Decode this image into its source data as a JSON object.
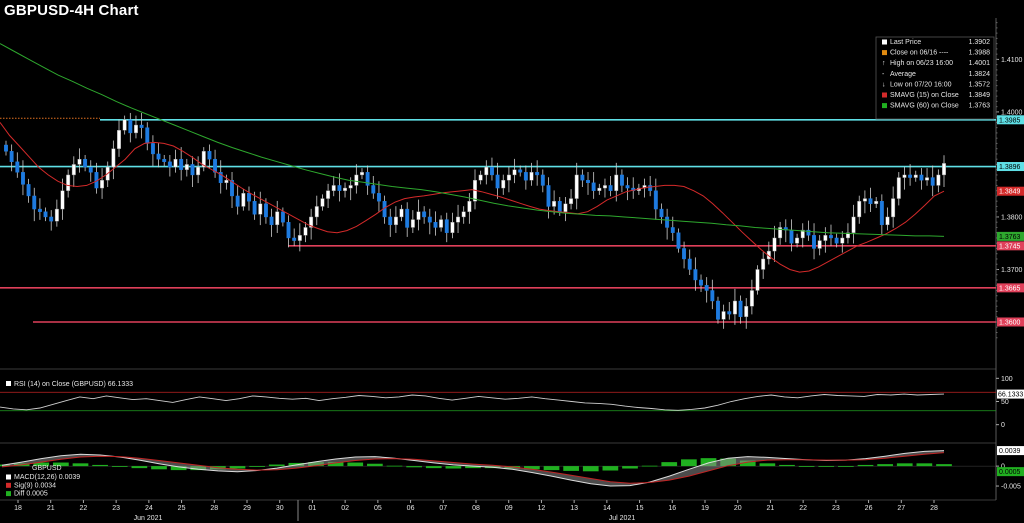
{
  "title": "GBPUSD-4H Chart",
  "colors": {
    "bg": "#000000",
    "up": "#ffffff",
    "down": "#1e7be0",
    "sma15": "#d42a2a",
    "sma60": "#2ea82e",
    "cyan": "#5fe0e6",
    "support": "#e0405a",
    "rsi": "#cfcfcf",
    "macd": "#dcdcdc",
    "signal": "#c02424",
    "diff": "#20b020"
  },
  "chart_data": [
    {
      "type": "candlestick",
      "pane": "price",
      "yrange": [
        1.356,
        1.4175
      ],
      "yticks": [
        "1.4100",
        "1.4000",
        "1.3900",
        "1.3800",
        "1.3700",
        "1.3600"
      ],
      "x_ticks": [
        "18",
        "21",
        "22",
        "23",
        "24",
        "25",
        "28",
        "29",
        "30",
        "01",
        "02",
        "05",
        "06",
        "07",
        "08",
        "09",
        "12",
        "13",
        "14",
        "15",
        "16",
        "19",
        "20",
        "21",
        "22",
        "23",
        "26",
        "27",
        "28"
      ],
      "month_labels": [
        "Jun 2021",
        "Jul 2021"
      ],
      "close": [
        1.3925,
        1.3905,
        1.3885,
        1.3862,
        1.384,
        1.3815,
        1.381,
        1.38,
        1.3792,
        1.3815,
        1.385,
        1.388,
        1.39,
        1.391,
        1.3895,
        1.3885,
        1.3855,
        1.387,
        1.3895,
        1.393,
        1.3965,
        1.3985,
        1.396,
        1.3975,
        1.397,
        1.394,
        1.392,
        1.391,
        1.3905,
        1.3895,
        1.391,
        1.389,
        1.39,
        1.388,
        1.3895,
        1.3925,
        1.391,
        1.3885,
        1.3865,
        1.387,
        1.384,
        1.382,
        1.3845,
        1.383,
        1.3805,
        1.3825,
        1.38,
        1.3785,
        1.381,
        1.379,
        1.376,
        1.3755,
        1.3765,
        1.378,
        1.38,
        1.382,
        1.3835,
        1.385,
        1.386,
        1.385,
        1.3855,
        1.386,
        1.388,
        1.3885,
        1.386,
        1.3845,
        1.383,
        1.38,
        1.3785,
        1.38,
        1.3815,
        1.378,
        1.3795,
        1.381,
        1.38,
        1.379,
        1.378,
        1.3795,
        1.377,
        1.379,
        1.38,
        1.381,
        1.383,
        1.387,
        1.388,
        1.3895,
        1.388,
        1.3855,
        1.387,
        1.388,
        1.389,
        1.3885,
        1.387,
        1.3885,
        1.388,
        1.386,
        1.382,
        1.383,
        1.381,
        1.3825,
        1.3835,
        1.388,
        1.387,
        1.3865,
        1.385,
        1.3855,
        1.386,
        1.385,
        1.388,
        1.386,
        1.3855,
        1.385,
        1.3855,
        1.386,
        1.385,
        1.3815,
        1.38,
        1.378,
        1.377,
        1.374,
        1.372,
        1.37,
        1.368,
        1.367,
        1.366,
        1.364,
        1.3605,
        1.362,
        1.3615,
        1.364,
        1.361,
        1.363,
        1.366,
        1.37,
        1.372,
        1.3735,
        1.376,
        1.378,
        1.3775,
        1.375,
        1.376,
        1.3775,
        1.3765,
        1.374,
        1.3755,
        1.3765,
        1.376,
        1.375,
        1.376,
        1.377,
        1.38,
        1.383,
        1.3835,
        1.3825,
        1.383,
        1.3785,
        1.38,
        1.3835,
        1.3875,
        1.388,
        1.3875,
        1.388,
        1.387,
        1.3875,
        1.386,
        1.388,
        1.3902
      ]
    },
    {
      "type": "line",
      "pane": "price",
      "series": [
        {
          "name": "SMAVG (15) on Close",
          "values": [
            1.398,
            1.3955,
            1.3935,
            1.3915,
            1.3895,
            1.388,
            1.3868,
            1.386,
            1.3858,
            1.386,
            1.3868,
            1.388,
            1.3895,
            1.391,
            1.393,
            1.394,
            1.3942,
            1.394,
            1.3935,
            1.3925,
            1.3913,
            1.39,
            1.389,
            1.388,
            1.3868,
            1.3856,
            1.3845,
            1.3835,
            1.3825,
            1.3815,
            1.3805,
            1.3795,
            1.3785,
            1.3778,
            1.3772,
            1.377,
            1.3774,
            1.3782,
            1.3793,
            1.3805,
            1.3818,
            1.3828,
            1.3835,
            1.3838,
            1.384,
            1.3843,
            1.3846,
            1.3848,
            1.385,
            1.3852,
            1.3848,
            1.3843,
            1.3838,
            1.3832,
            1.3826,
            1.382,
            1.3815,
            1.3812,
            1.381,
            1.3808,
            1.3806,
            1.381,
            1.382,
            1.3832,
            1.384,
            1.3848,
            1.3852,
            1.3856,
            1.3858,
            1.386,
            1.386,
            1.3858,
            1.385,
            1.384,
            1.3825,
            1.3808,
            1.379,
            1.3772,
            1.3755,
            1.3738,
            1.3723,
            1.371,
            1.37,
            1.3695,
            1.3697,
            1.3705,
            1.3715,
            1.3725,
            1.3735,
            1.3745,
            1.3752,
            1.376,
            1.3768,
            1.3778,
            1.379,
            1.3805,
            1.3822,
            1.384,
            1.3849
          ]
        },
        {
          "name": "SMAVG (60) on Close",
          "values": [
            1.413,
            1.4115,
            1.41,
            1.4085,
            1.407,
            1.4058,
            1.4045,
            1.4033,
            1.402,
            1.4008,
            1.3997,
            1.3986,
            1.3975,
            1.3964,
            1.3953,
            1.3942,
            1.3932,
            1.3923,
            1.3914,
            1.3906,
            1.3898,
            1.389,
            1.3883,
            1.3876,
            1.387,
            1.3866,
            1.3862,
            1.3858,
            1.3855,
            1.3852,
            1.3848,
            1.3843,
            1.3838,
            1.3832,
            1.3826,
            1.3821,
            1.3817,
            1.3813,
            1.381,
            1.3807,
            1.3805,
            1.3803,
            1.3802,
            1.38,
            1.3798,
            1.3796,
            1.3794,
            1.3792,
            1.379,
            1.3788,
            1.3785,
            1.3783,
            1.378,
            1.3778,
            1.3776,
            1.3774,
            1.3772,
            1.377,
            1.3769,
            1.3768,
            1.3767,
            1.3766,
            1.3765,
            1.3764,
            1.3764,
            1.3763
          ]
        }
      ]
    },
    {
      "type": "line",
      "pane": "rsi",
      "yrange": [
        -5,
        105
      ],
      "yticks": [
        "100",
        "50",
        "0"
      ],
      "series": [
        {
          "name": "RSI (14) on Close (GBPUSD)",
          "values": [
            38,
            34,
            32,
            36,
            44,
            52,
            60,
            56,
            62,
            58,
            54,
            56,
            52,
            48,
            54,
            60,
            56,
            52,
            56,
            62,
            60,
            57,
            55,
            57,
            52,
            56,
            59,
            63,
            61,
            58,
            60,
            64,
            62,
            57,
            53,
            57,
            61,
            58,
            55,
            57,
            60,
            56,
            53,
            50,
            47,
            46,
            44,
            40,
            37,
            35,
            32,
            31,
            33,
            36,
            42,
            50,
            56,
            61,
            64,
            60,
            58,
            62,
            65,
            63,
            62,
            61,
            65,
            64,
            66,
            64,
            65,
            66
          ]
        }
      ]
    },
    {
      "type": "bar",
      "pane": "macd",
      "yrange": [
        -0.0075,
        0.0048
      ],
      "yticks": [
        "0",
        "-0.005"
      ],
      "series": [
        {
          "name": "MACD(12,26)",
          "values": [
            0.0002,
            0.001,
            0.0019,
            0.0026,
            0.003,
            0.0028,
            0.0023,
            0.0015,
            0.0006,
            -0.0002,
            -0.0008,
            -0.0012,
            -0.0014,
            -0.0011,
            -0.0005,
            0.0003,
            0.0011,
            0.0018,
            0.0023,
            0.0024,
            0.002,
            0.0014,
            0.0008,
            0.0003,
            0.0,
            -0.0003,
            -0.0008,
            -0.0016,
            -0.0025,
            -0.0035,
            -0.0044,
            -0.005,
            -0.0049,
            -0.004,
            -0.0025,
            -0.0008,
            0.0008,
            0.002,
            0.0024,
            0.0022,
            0.0019,
            0.0016,
            0.0014,
            0.0015,
            0.0019,
            0.0025,
            0.0032,
            0.0037,
            0.0039
          ]
        },
        {
          "name": "Sig(9)",
          "values": [
            -0.0002,
            0.0003,
            0.001,
            0.0017,
            0.0023,
            0.0025,
            0.0024,
            0.002,
            0.0014,
            0.0008,
            0.0002,
            -0.0004,
            -0.0008,
            -0.001,
            -0.0009,
            -0.0005,
            0.0001,
            0.0008,
            0.0014,
            0.0018,
            0.0019,
            0.0017,
            0.0013,
            0.0009,
            0.0005,
            0.0002,
            -0.0002,
            -0.0008,
            -0.0015,
            -0.0023,
            -0.0031,
            -0.0039,
            -0.0043,
            -0.0041,
            -0.0035,
            -0.0025,
            -0.0012,
            0.0001,
            0.001,
            0.0015,
            0.0016,
            0.0016,
            0.0015,
            0.0015,
            0.0016,
            0.002,
            0.0025,
            0.003,
            0.0034
          ]
        },
        {
          "name": "Diff",
          "values": [
            0.0004,
            0.0007,
            0.0009,
            0.0009,
            0.0007,
            0.0003,
            -0.0001,
            -0.0005,
            -0.0008,
            -0.001,
            -0.001,
            -0.0008,
            -0.0006,
            -0.0001,
            0.0004,
            0.0008,
            0.001,
            0.001,
            0.0009,
            0.0006,
            0.0001,
            -0.0003,
            -0.0005,
            -0.0006,
            -0.0005,
            -0.0005,
            -0.0006,
            -0.0008,
            -0.001,
            -0.0012,
            -0.0013,
            -0.0011,
            -0.0006,
            0.0001,
            0.001,
            0.0017,
            0.002,
            0.0019,
            0.0014,
            0.0007,
            0.0003,
            0.0,
            -0.0001,
            0.0,
            0.0003,
            0.0005,
            0.0007,
            0.0007,
            0.0005
          ]
        }
      ]
    }
  ],
  "levels": [
    {
      "value": 1.3985,
      "label": "1.3985",
      "kind": "cyan"
    },
    {
      "value": 1.3896,
      "label": "1.3896",
      "kind": "cyan"
    },
    {
      "value": 1.3745,
      "label": "1.3745",
      "kind": "support"
    },
    {
      "value": 1.3665,
      "label": "1.3665",
      "kind": "support"
    },
    {
      "value": 1.36,
      "label": "1.3600",
      "kind": "support"
    }
  ],
  "last_price_tags": [
    {
      "value": 1.3849,
      "label": "1.3849",
      "kind": "sma15"
    },
    {
      "value": 1.3763,
      "label": "1.3763",
      "kind": "sma60"
    }
  ],
  "legend": [
    {
      "label": "Last Price",
      "value": "1.3902",
      "icon": "white-square"
    },
    {
      "label": "Close on 06/16 ----",
      "value": "1.3988",
      "icon": "orange-square"
    },
    {
      "label": "High on 06/23 16:00",
      "value": "1.4001",
      "icon": "up-tick"
    },
    {
      "label": "Average",
      "value": "1.3824",
      "icon": "dash"
    },
    {
      "label": "Low on 07/20 16:00",
      "value": "1.3572",
      "icon": "down-tick"
    },
    {
      "label": "SMAVG (15)  on Close",
      "value": "1.3849",
      "icon": "red-square"
    },
    {
      "label": "SMAVG (60)  on Close",
      "value": "1.3763",
      "icon": "green-square"
    }
  ],
  "rsi_legend": {
    "label": "RSI (14)   on Close (GBPUSD) 66.1333",
    "tag": "66.1333"
  },
  "macd_legend": {
    "title": "GBPUSD",
    "items": [
      {
        "label": "MACD(12,26) 0.0039",
        "icon": "white-square"
      },
      {
        "label": "Sig(9)        0.0034",
        "icon": "red-square"
      },
      {
        "label": "Diff          0.0005",
        "icon": "green-square"
      }
    ],
    "tags": [
      "0.0039",
      "0.0005"
    ]
  }
}
